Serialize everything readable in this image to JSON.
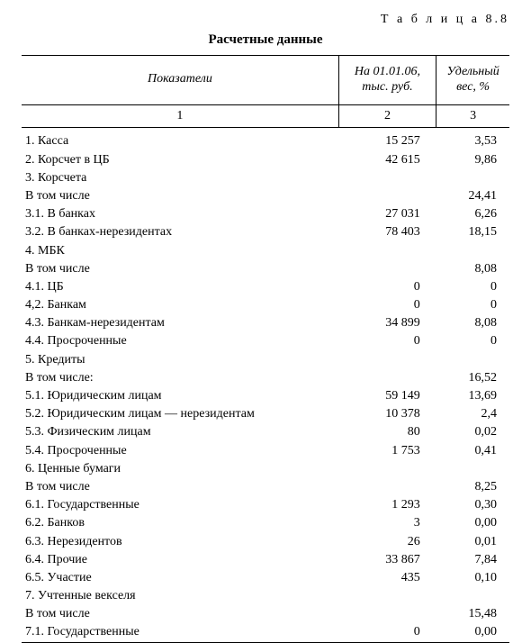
{
  "table_label": "Т а б л и ц а  8.8",
  "title": "Расчетные данные",
  "header": {
    "col1": "Показатели",
    "col2": "На 01.01.06, тыс. руб.",
    "col3": "Удельный вес, %",
    "num1": "1",
    "num2": "2",
    "num3": "3"
  },
  "rows": [
    {
      "label": "1. Касса",
      "val": "15 257",
      "pct": "3,53"
    },
    {
      "label": "2. Корсчет в ЦБ",
      "val": "42 615",
      "pct": "9,86"
    },
    {
      "label": "3. Корсчета",
      "val": "",
      "pct": ""
    },
    {
      "label": "В том числе",
      "val": "",
      "pct": "24,41"
    },
    {
      "label": "3.1. В банках",
      "val": "27 031",
      "pct": "6,26"
    },
    {
      "label": "3.2. В банках-нерезидентах",
      "val": "78 403",
      "pct": "18,15"
    },
    {
      "label": "4. МБК",
      "val": "",
      "pct": ""
    },
    {
      "label": "В том числе",
      "val": "",
      "pct": "8,08"
    },
    {
      "label": "4.1. ЦБ",
      "val": "0",
      "pct": "0"
    },
    {
      "label": "4,2. Банкам",
      "val": "0",
      "pct": "0"
    },
    {
      "label": "4.3. Банкам-нерезидентам",
      "val": "34 899",
      "pct": "8,08"
    },
    {
      "label": "4.4. Просроченные",
      "val": "0",
      "pct": "0"
    },
    {
      "label": "5. Кредиты",
      "val": "",
      "pct": ""
    },
    {
      "label": "В том числе:",
      "val": "",
      "pct": "16,52"
    },
    {
      "label": "5.1. Юридическим лицам",
      "val": "59 149",
      "pct": "13,69"
    },
    {
      "label": "5.2. Юридическим лицам — нерезидентам",
      "val": "10 378",
      "pct": "2,4"
    },
    {
      "label": "5.3. Физическим лицам",
      "val": "80",
      "pct": "0,02"
    },
    {
      "label": "5.4. Просроченные",
      "val": "1 753",
      "pct": "0,41"
    },
    {
      "label": "6. Ценные бумаги",
      "val": "",
      "pct": ""
    },
    {
      "label": "В том числе",
      "val": "",
      "pct": "8,25"
    },
    {
      "label": "6.1. Государственные",
      "val": "1 293",
      "pct": "0,30"
    },
    {
      "label": "6.2. Банков",
      "val": "3",
      "pct": "0,00"
    },
    {
      "label": "6.3. Нерезидентов",
      "val": "26",
      "pct": "0,01"
    },
    {
      "label": "6.4. Прочие",
      "val": "33 867",
      "pct": "7,84"
    },
    {
      "label": "6.5. Участие",
      "val": "435",
      "pct": "0,10"
    },
    {
      "label": "7. Учтенные векселя",
      "val": "",
      "pct": ""
    },
    {
      "label": "В том числе",
      "val": "",
      "pct": "15,48"
    },
    {
      "label": "7.1. Государственные",
      "val": "0",
      "pct": "0,00"
    }
  ]
}
